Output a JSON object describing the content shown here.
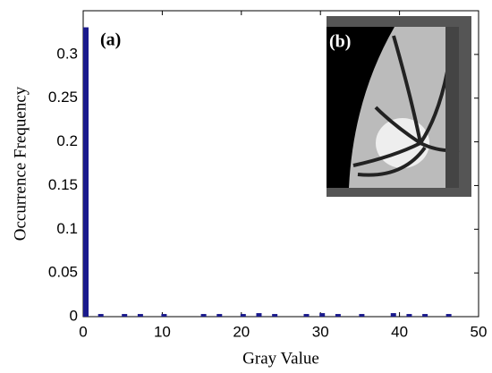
{
  "chart_data": {
    "type": "bar",
    "x_label": "Gray Value",
    "y_label": "Occurrence Frequency",
    "annotations": [
      "(a)",
      "(b)"
    ],
    "x": [
      0,
      2,
      5,
      7,
      10,
      15,
      17,
      20,
      22,
      24,
      28,
      30,
      32,
      35,
      39,
      41,
      43,
      46
    ],
    "values": [
      0.33,
      0.002,
      0.002,
      0.002,
      0.002,
      0.002,
      0.002,
      0.002,
      0.003,
      0.002,
      0.002,
      0.003,
      0.002,
      0.002,
      0.003,
      0.002,
      0.002,
      0.002
    ],
    "color": "#1a1a8c",
    "xlim": [
      0,
      50
    ],
    "xticks": [
      0,
      10,
      20,
      30,
      40,
      50
    ],
    "ylim": [
      0,
      0.35
    ],
    "yticks": [
      0,
      0.05,
      0.1,
      0.15,
      0.2,
      0.25,
      0.3
    ]
  }
}
